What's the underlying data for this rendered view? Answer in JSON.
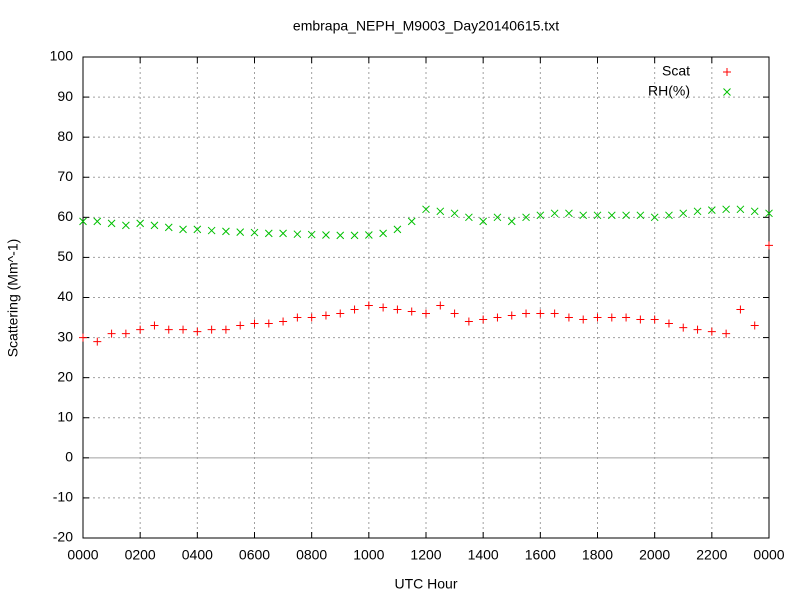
{
  "chart_data": {
    "type": "scatter",
    "title": "embrapa_NEPH_M9003_Day20140615.txt",
    "xlabel": "UTC Hour",
    "ylabel": "Scattering (Mm^-1)",
    "x": [
      0,
      0.5,
      1,
      1.5,
      2,
      2.5,
      3,
      3.5,
      4,
      4.5,
      5,
      5.5,
      6,
      6.5,
      7,
      7.5,
      8,
      8.5,
      9,
      9.5,
      10,
      10.5,
      11,
      11.5,
      12,
      12.5,
      13,
      13.5,
      14,
      14.5,
      15,
      15.5,
      16,
      16.5,
      17,
      17.5,
      18,
      18.5,
      19,
      19.5,
      20,
      20.5,
      21,
      21.5,
      22,
      22.5,
      23,
      23.5,
      24
    ],
    "series": [
      {
        "name": "Scat",
        "color": "#ff0000",
        "marker": "plus",
        "values": [
          30,
          29,
          31,
          31,
          32,
          33,
          32,
          32,
          31.5,
          32,
          32,
          33,
          33.5,
          33.5,
          34,
          35,
          35,
          35.5,
          36,
          37,
          38,
          37.5,
          37,
          36.5,
          36,
          38,
          36,
          34,
          34.5,
          35,
          35.5,
          36,
          36,
          36,
          35,
          34.5,
          35,
          35,
          35,
          34.5,
          34.5,
          33.5,
          32.5,
          32,
          31.5,
          31,
          37,
          33,
          53
        ]
      },
      {
        "name": "RH(%)",
        "color": "#00c000",
        "marker": "cross",
        "values": [
          59,
          59,
          58.5,
          58,
          58.5,
          58,
          57.5,
          57,
          57,
          56.7,
          56.5,
          56.3,
          56.2,
          56,
          56,
          55.8,
          55.7,
          55.6,
          55.5,
          55.5,
          55.6,
          56,
          57,
          59,
          62,
          61.5,
          61,
          60,
          59,
          60,
          59,
          60,
          60.5,
          61,
          61,
          60.5,
          60.5,
          60.5,
          60.5,
          60.5,
          60,
          60.5,
          61,
          61.5,
          61.8,
          62,
          62,
          61.5,
          61
        ]
      }
    ],
    "xlim": [
      0,
      24
    ],
    "xticks": [
      {
        "value": 0,
        "label": "0000"
      },
      {
        "value": 2,
        "label": "0200"
      },
      {
        "value": 4,
        "label": "0400"
      },
      {
        "value": 6,
        "label": "0600"
      },
      {
        "value": 8,
        "label": "0800"
      },
      {
        "value": 10,
        "label": "1000"
      },
      {
        "value": 12,
        "label": "1200"
      },
      {
        "value": 14,
        "label": "1400"
      },
      {
        "value": 16,
        "label": "1600"
      },
      {
        "value": 18,
        "label": "1800"
      },
      {
        "value": 20,
        "label": "2000"
      },
      {
        "value": 22,
        "label": "2200"
      },
      {
        "value": 24,
        "label": "0000"
      }
    ],
    "ylim": [
      -20,
      100
    ],
    "yticks": [
      -20,
      -10,
      0,
      10,
      20,
      30,
      40,
      50,
      60,
      70,
      80,
      90,
      100
    ],
    "grid": true,
    "legend": "top-right"
  }
}
